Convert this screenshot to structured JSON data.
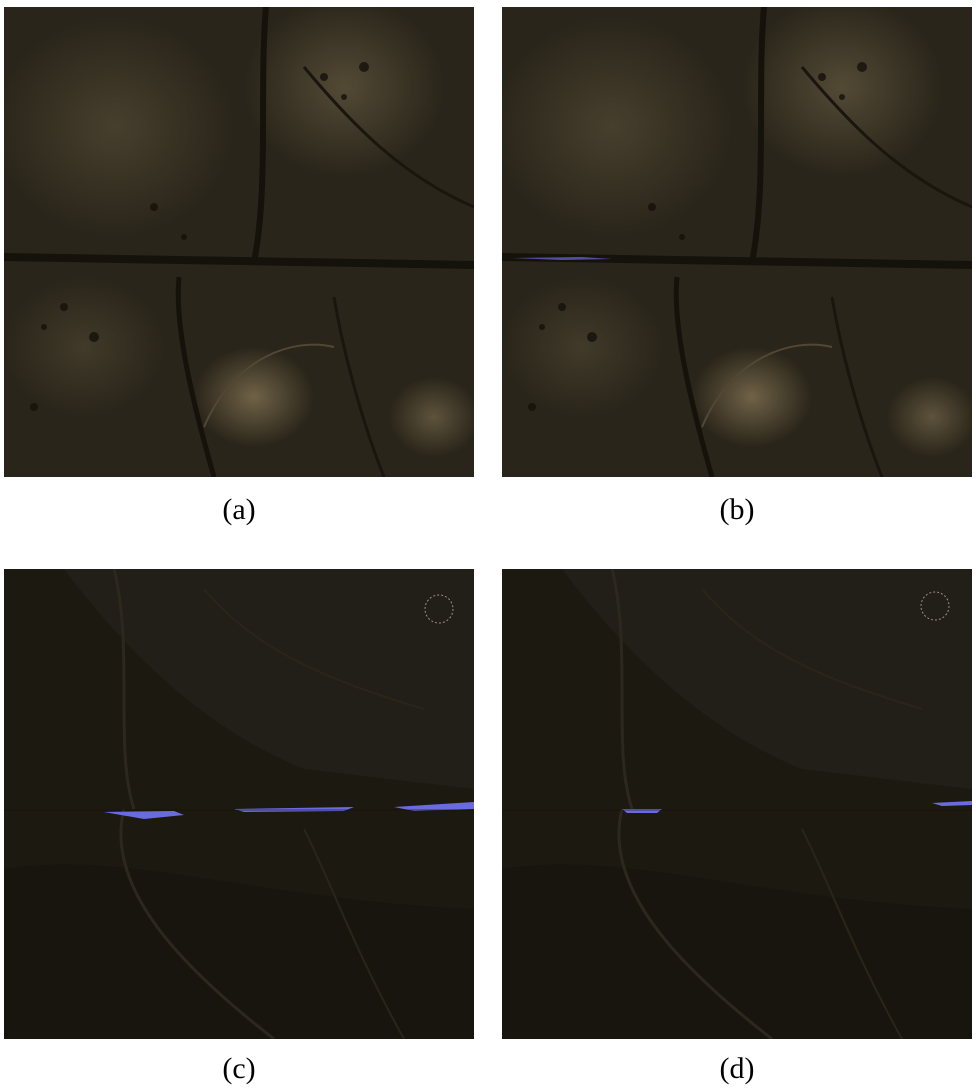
{
  "figure": {
    "panels": [
      {
        "id": "a",
        "caption": "(a)",
        "scene": "top-terrain",
        "water_overlay": false
      },
      {
        "id": "b",
        "caption": "(b)",
        "scene": "top-terrain",
        "water_overlay": true
      },
      {
        "id": "c",
        "caption": "(c)",
        "scene": "bottom-terrain",
        "water_overlay": true
      },
      {
        "id": "d",
        "caption": "(d)",
        "scene": "bottom-terrain",
        "water_overlay": true
      }
    ]
  },
  "colors": {
    "terrain_dark": "#1e1a12",
    "terrain_mid": "#3a3222",
    "terrain_light": "#6b5f45",
    "water": "#6b6be0"
  }
}
